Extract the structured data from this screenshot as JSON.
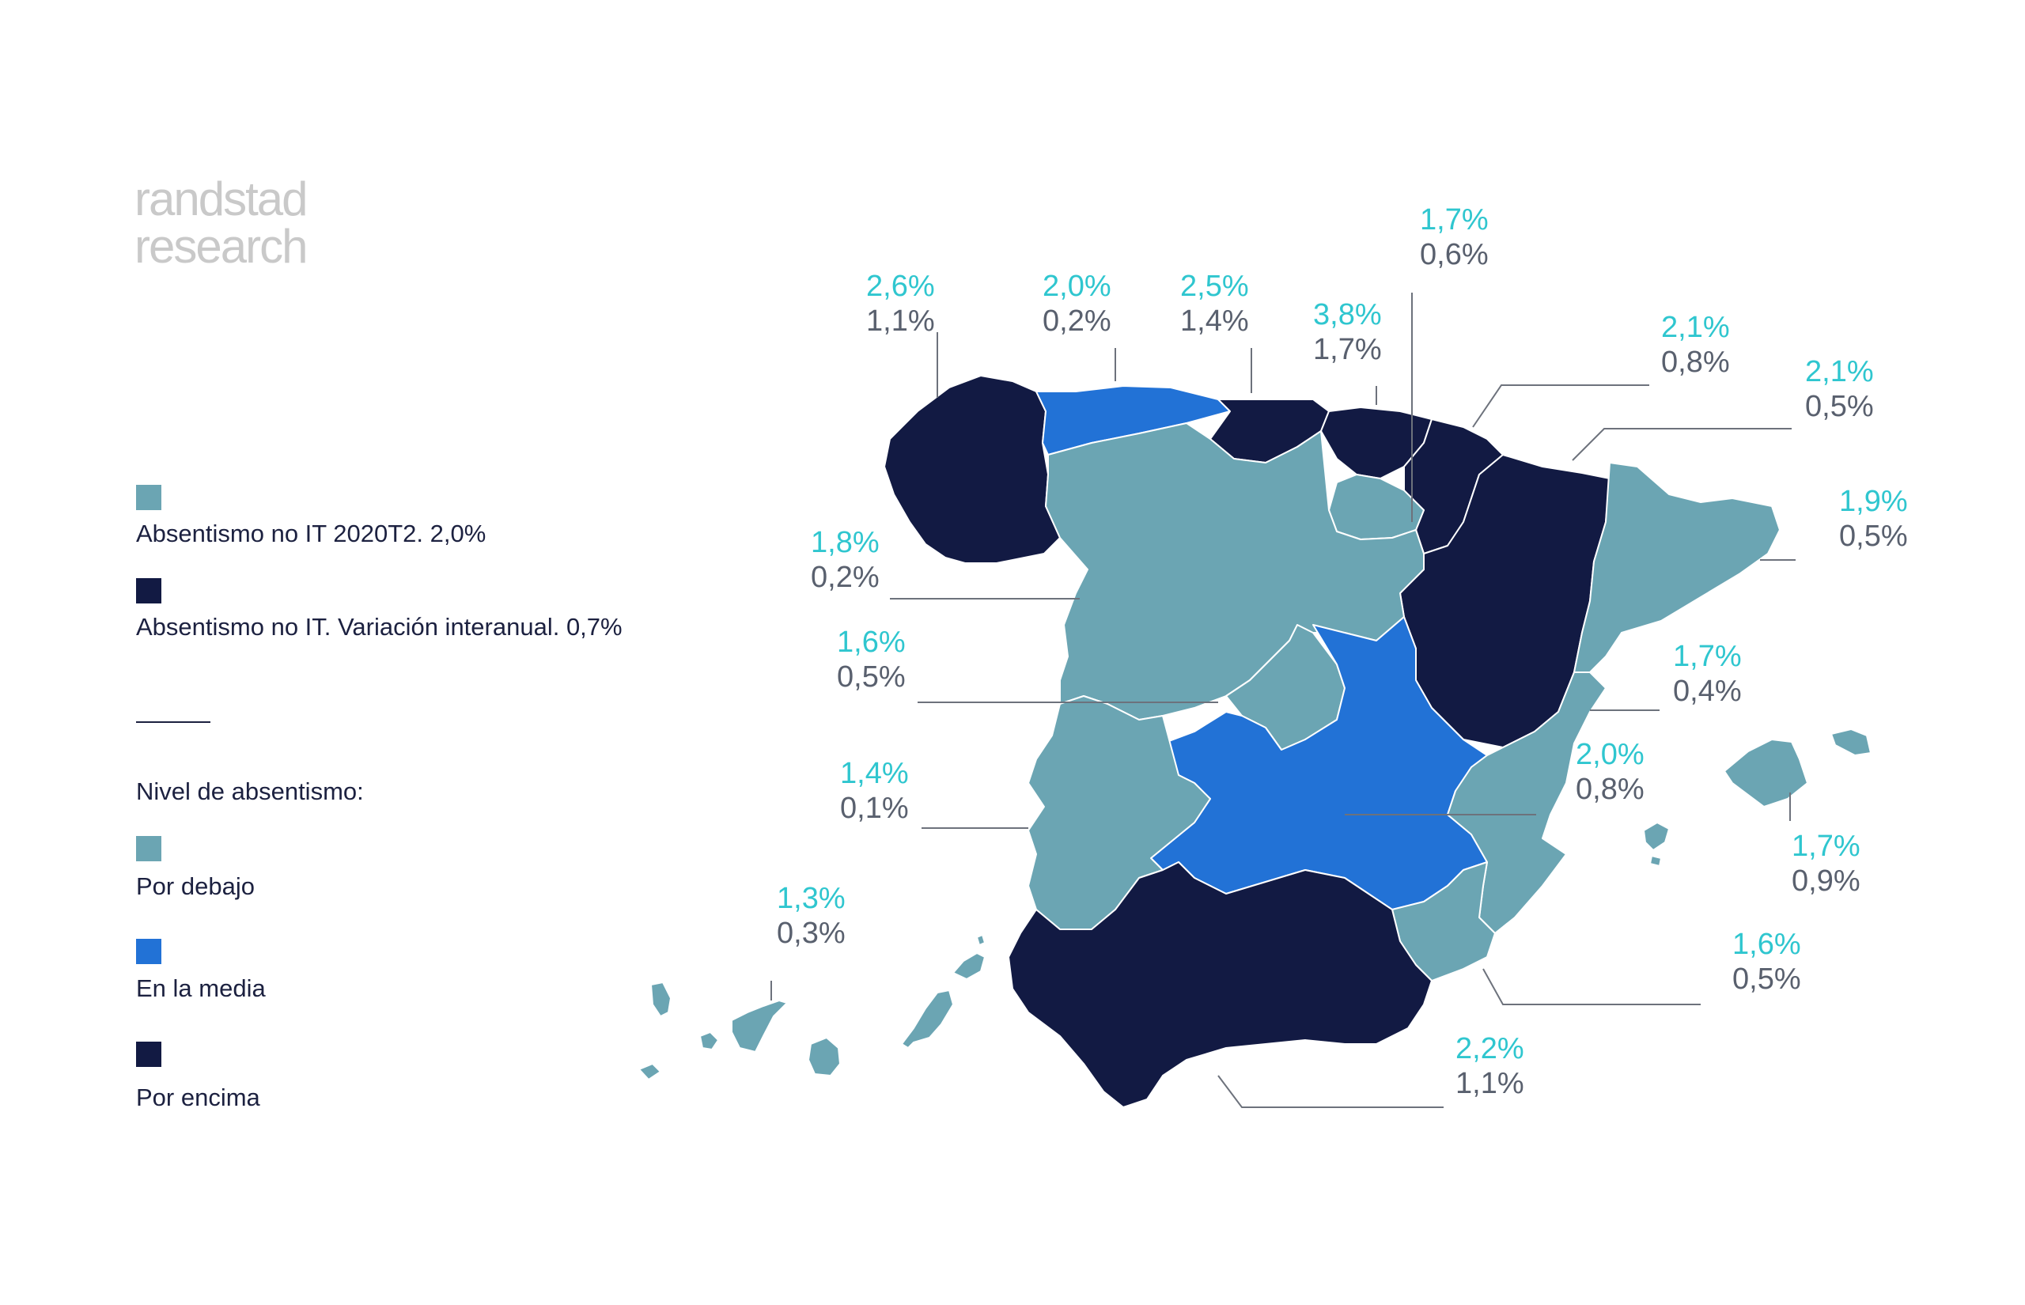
{
  "brand": {
    "line1": "randstad",
    "line2": "research"
  },
  "legend": {
    "absentismo": "Absentismo no IT 2020T2. 2,0%",
    "variacion": "Absentismo no IT. Variación interanual. 0,7%",
    "nivel_title": "Nivel de absentismo:",
    "debajo": "Por debajo",
    "media": "En la media",
    "encima": "Por encima"
  },
  "colors": {
    "debajo": "#6ba5b3",
    "media": "#2272d6",
    "encima": "#121a43",
    "value_primary": "#2fc6cf",
    "value_secondary": "#59606e"
  },
  "regions": [
    {
      "id": "galicia",
      "level": "encima",
      "value": "2,6%",
      "variation": "1,1%"
    },
    {
      "id": "asturias",
      "level": "media",
      "value": "2,0%",
      "variation": "0,2%"
    },
    {
      "id": "cantabria",
      "level": "encima",
      "value": "2,5%",
      "variation": "1,4%"
    },
    {
      "id": "pais-vasco",
      "level": "encima",
      "value": "3,8%",
      "variation": "1,7%"
    },
    {
      "id": "la-rioja",
      "level": "debajo",
      "value": "1,7%",
      "variation": "0,6%"
    },
    {
      "id": "navarra",
      "level": "encima",
      "value": "2,1%",
      "variation": "0,8%"
    },
    {
      "id": "aragon",
      "level": "encima",
      "value": "2,1%",
      "variation": "0,5%"
    },
    {
      "id": "cataluna",
      "level": "debajo",
      "value": "1,9%",
      "variation": "0,5%"
    },
    {
      "id": "castilla-leon",
      "level": "debajo",
      "value": "1,8%",
      "variation": "0,2%"
    },
    {
      "id": "madrid",
      "level": "debajo",
      "value": "1,6%",
      "variation": "0,5%"
    },
    {
      "id": "castilla-la-mancha",
      "level": "media",
      "value": "2,0%",
      "variation": "0,8%"
    },
    {
      "id": "valencia",
      "level": "debajo",
      "value": "1,7%",
      "variation": "0,4%"
    },
    {
      "id": "baleares",
      "level": "debajo",
      "value": "1,7%",
      "variation": "0,9%"
    },
    {
      "id": "extremadura",
      "level": "debajo",
      "value": "1,4%",
      "variation": "0,1%"
    },
    {
      "id": "murcia",
      "level": "debajo",
      "value": "1,6%",
      "variation": "0,5%"
    },
    {
      "id": "andalucia",
      "level": "encima",
      "value": "2,2%",
      "variation": "1,1%"
    },
    {
      "id": "canarias",
      "level": "debajo",
      "value": "1,3%",
      "variation": "0,3%"
    }
  ]
}
